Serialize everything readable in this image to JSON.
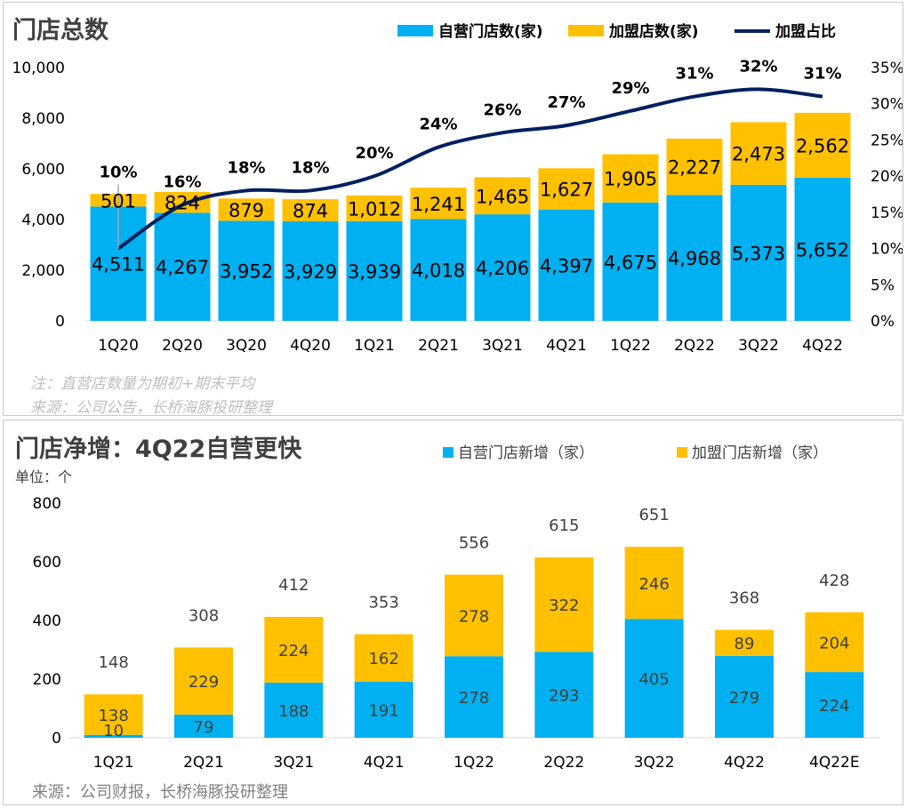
{
  "colors": {
    "self": "#00b0f0",
    "franchise": "#ffc000",
    "line": "#002060",
    "grid": "#d9d9d9"
  },
  "chart_data": [
    {
      "type": "bar",
      "stacked": true,
      "title": "门店总数",
      "categories": [
        "1Q20",
        "2Q20",
        "3Q20",
        "4Q20",
        "1Q21",
        "2Q21",
        "3Q21",
        "4Q21",
        "1Q22",
        "2Q22",
        "3Q22",
        "4Q22"
      ],
      "series": [
        {
          "name": "自营门店数(家)",
          "values": [
            4511,
            4267,
            3952,
            3929,
            3939,
            4018,
            4206,
            4397,
            4675,
            4968,
            5373,
            5652
          ]
        },
        {
          "name": "加盟店数(家)",
          "values": [
            501,
            824,
            879,
            874,
            1012,
            1241,
            1465,
            1627,
            1905,
            2227,
            2473,
            2562
          ]
        }
      ],
      "line_series": {
        "name": "加盟占比",
        "values": [
          10,
          16,
          18,
          18,
          20,
          24,
          26,
          27,
          29,
          31,
          32,
          31
        ],
        "axis": "right"
      },
      "ylim": [
        0,
        10000
      ],
      "yticks": [
        "0",
        "2,000",
        "4,000",
        "6,000",
        "8,000",
        "10,000"
      ],
      "y2lim": [
        0,
        35
      ],
      "y2ticks": [
        "0%",
        "5%",
        "10%",
        "15%",
        "20%",
        "25%",
        "30%",
        "35%"
      ],
      "legend_position": "top-right",
      "notes": [
        "注：直营店数量为期初+期末平均",
        "来源：公司公告，长桥海豚投研整理"
      ]
    },
    {
      "type": "bar",
      "stacked": true,
      "title": "门店净增：4Q22自营更快",
      "unit": "单位：个",
      "categories": [
        "1Q21",
        "2Q21",
        "3Q21",
        "4Q21",
        "1Q22",
        "2Q22",
        "3Q22",
        "4Q22",
        "4Q22E"
      ],
      "series": [
        {
          "name": "自营门店新增（家）",
          "values": [
            10,
            79,
            188,
            191,
            278,
            293,
            405,
            279,
            224
          ]
        },
        {
          "name": "加盟门店新增（家）",
          "values": [
            138,
            229,
            224,
            162,
            278,
            322,
            246,
            89,
            204
          ]
        }
      ],
      "totals": [
        148,
        308,
        412,
        353,
        556,
        615,
        651,
        368,
        428
      ],
      "ylim": [
        0,
        800
      ],
      "yticks": [
        "0",
        "200",
        "400",
        "600",
        "800"
      ],
      "legend_position": "top-right",
      "source": "来源：公司财报，长桥海豚投研整理"
    }
  ]
}
